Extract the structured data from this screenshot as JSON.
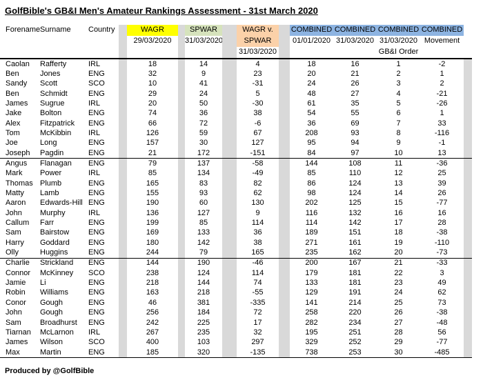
{
  "title": "GolfBible's GB&I Men's Amateur Rankings Assessment - 31st March 2020",
  "footer": "Produced by @GolfBible",
  "colors": {
    "wagr_header": "#FFFF00",
    "spwar_header": "#D6E3BC",
    "wagr_v_spwar_header": "#FBD1A9",
    "combined_header": "#8DB4E2",
    "separator": "#D9D9D9"
  },
  "columns": {
    "forename": "Forename",
    "surname": "Surname",
    "country": "Country",
    "wagr": {
      "label": "WAGR",
      "date": "29/03/2020"
    },
    "spwar": {
      "label": "SPWAR",
      "date": "31/03/2020"
    },
    "wagr_v_spwar": {
      "label_line1": "WAGR v.",
      "label_line2": "SPWAR",
      "date": "31/03/2020"
    },
    "combined": [
      {
        "label": "COMBINED",
        "sub": "01/01/2020",
        "sub2": ""
      },
      {
        "label": "COMBINED",
        "sub": "31/03/2020",
        "sub2": ""
      },
      {
        "label": "COMBINED",
        "sub": "31/03/2020",
        "sub2": "GB&I Order"
      },
      {
        "label": "COMBINED",
        "sub": "Movement",
        "sub2": ""
      }
    ]
  },
  "rows": [
    [
      "Caolan",
      "Rafferty",
      "IRL",
      18,
      14,
      4,
      18,
      16,
      1,
      -2
    ],
    [
      "Ben",
      "Jones",
      "ENG",
      32,
      9,
      23,
      20,
      21,
      2,
      1
    ],
    [
      "Sandy",
      "Scott",
      "SCO",
      10,
      41,
      -31,
      24,
      26,
      3,
      2
    ],
    [
      "Ben",
      "Schmidt",
      "ENG",
      29,
      24,
      5,
      48,
      27,
      4,
      -21
    ],
    [
      "James",
      "Sugrue",
      "IRL",
      20,
      50,
      -30,
      61,
      35,
      5,
      -26
    ],
    [
      "Jake",
      "Bolton",
      "ENG",
      74,
      36,
      38,
      54,
      55,
      6,
      1
    ],
    [
      "Alex",
      "Fitzpatrick",
      "ENG",
      66,
      72,
      -6,
      36,
      69,
      7,
      33
    ],
    [
      "Tom",
      "McKibbin",
      "IRL",
      126,
      59,
      67,
      208,
      93,
      8,
      -116
    ],
    [
      "Joe",
      "Long",
      "ENG",
      157,
      30,
      127,
      95,
      94,
      9,
      -1
    ],
    [
      "Joseph",
      "Pagdin",
      "ENG",
      21,
      172,
      -151,
      84,
      97,
      10,
      13
    ],
    [
      "Angus",
      "Flanagan",
      "ENG",
      79,
      137,
      -58,
      144,
      108,
      11,
      -36
    ],
    [
      "Mark",
      "Power",
      "IRL",
      85,
      134,
      -49,
      85,
      110,
      12,
      25
    ],
    [
      "Thomas",
      "Plumb",
      "ENG",
      165,
      83,
      82,
      86,
      124,
      13,
      39
    ],
    [
      "Matty",
      "Lamb",
      "ENG",
      155,
      93,
      62,
      98,
      124,
      14,
      26
    ],
    [
      "Aaron",
      "Edwards-Hill",
      "ENG",
      190,
      60,
      130,
      202,
      125,
      15,
      -77
    ],
    [
      "John",
      "Murphy",
      "IRL",
      136,
      127,
      9,
      116,
      132,
      16,
      16
    ],
    [
      "Callum",
      "Farr",
      "ENG",
      199,
      85,
      114,
      114,
      142,
      17,
      28
    ],
    [
      "Sam",
      "Bairstow",
      "ENG",
      169,
      133,
      36,
      189,
      151,
      18,
      -38
    ],
    [
      "Harry",
      "Goddard",
      "ENG",
      180,
      142,
      38,
      271,
      161,
      19,
      -110
    ],
    [
      "Olly",
      "Huggins",
      "ENG",
      244,
      79,
      165,
      235,
      162,
      20,
      -73
    ],
    [
      "Charlie",
      "Strickland",
      "ENG",
      144,
      190,
      -46,
      200,
      167,
      21,
      -33
    ],
    [
      "Connor",
      "McKinney",
      "SCO",
      238,
      124,
      114,
      179,
      181,
      22,
      3
    ],
    [
      "Jamie",
      "Li",
      "ENG",
      218,
      144,
      74,
      133,
      181,
      23,
      49
    ],
    [
      "Robin",
      "Williams",
      "ENG",
      163,
      218,
      -55,
      129,
      191,
      24,
      62
    ],
    [
      "Conor",
      "Gough",
      "ENG",
      46,
      381,
      -335,
      141,
      214,
      25,
      73
    ],
    [
      "John",
      "Gough",
      "ENG",
      256,
      184,
      72,
      258,
      220,
      26,
      -38
    ],
    [
      "Sam",
      "Broadhurst",
      "ENG",
      242,
      225,
      17,
      282,
      234,
      27,
      -48
    ],
    [
      "Tiarnan",
      "McLarnon",
      "IRL",
      267,
      235,
      32,
      195,
      251,
      28,
      56
    ],
    [
      "James",
      "Wilson",
      "SCO",
      400,
      103,
      297,
      329,
      252,
      29,
      -77
    ],
    [
      "Max",
      "Martin",
      "ENG",
      185,
      320,
      -135,
      738,
      253,
      30,
      -485
    ]
  ]
}
